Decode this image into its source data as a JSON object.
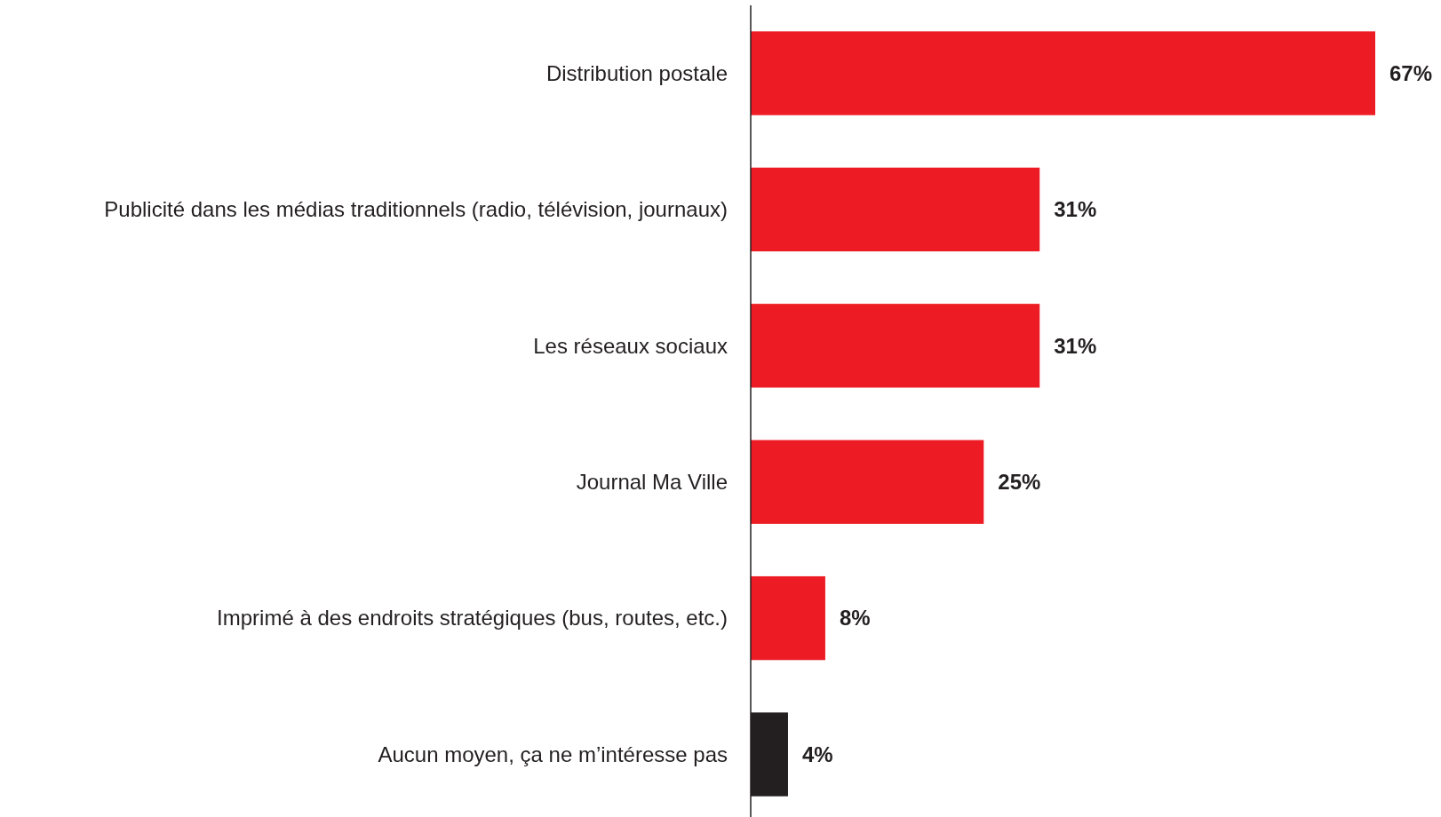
{
  "chart_data": {
    "type": "bar",
    "orientation": "horizontal",
    "categories": [
      "Distribution postale",
      "Publicité dans les médias traditionnels (radio, télévision, journaux)",
      "Les réseaux sociaux",
      "Journal Ma Ville",
      "Imprimé à des endroits stratégiques (bus, routes, etc.)",
      "Aucun moyen, ça ne m’intéresse pas"
    ],
    "values": [
      67,
      31,
      31,
      25,
      8,
      4
    ],
    "colors": [
      "#ed1c24",
      "#ed1c24",
      "#ed1c24",
      "#ed1c24",
      "#ed1c24",
      "#231f20"
    ],
    "value_labels": [
      "67%",
      "31%",
      "31%",
      "25%",
      "8%",
      "4%"
    ]
  }
}
